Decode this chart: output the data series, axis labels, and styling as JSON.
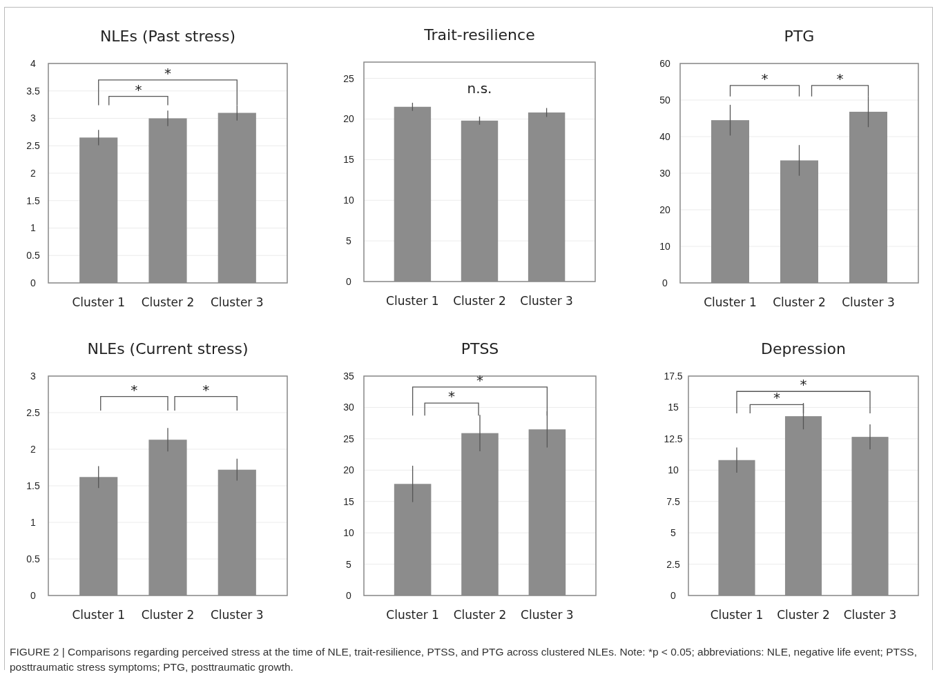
{
  "chart_data": [
    {
      "type": "bar",
      "title": "NLEs (Past stress)",
      "categories": [
        "Cluster 1",
        "Cluster 2",
        "Cluster 3"
      ],
      "values": [
        2.65,
        3.0,
        3.1
      ],
      "errors": [
        0.14,
        0.14,
        0.14
      ],
      "color": "#8c8c8c",
      "ylim": [
        0,
        4
      ],
      "yticks": [
        0,
        0.5,
        1,
        1.5,
        2,
        2.5,
        3,
        3.5,
        4
      ],
      "grid": "y",
      "annotations": [
        "*",
        "*"
      ]
    },
    {
      "type": "bar",
      "title": "Trait-resilience",
      "categories": [
        "Cluster 1",
        "Cluster 2",
        "Cluster 3"
      ],
      "values": [
        21.5,
        19.8,
        20.8
      ],
      "errors": [
        0.5,
        0.5,
        0.55
      ],
      "color": "#8c8c8c",
      "ylim": [
        0,
        27
      ],
      "yticks": [
        0,
        5,
        10,
        15,
        20,
        25
      ],
      "grid": "y",
      "annotations": [
        "n.s."
      ]
    },
    {
      "type": "bar",
      "title": "PTG",
      "categories": [
        "Cluster 1",
        "Cluster 2",
        "Cluster 3"
      ],
      "values": [
        44.5,
        33.5,
        46.8
      ],
      "errors": [
        4.2,
        4.2,
        4.2
      ],
      "color": "#8c8c8c",
      "ylim": [
        0,
        60
      ],
      "yticks": [
        0,
        10,
        20,
        30,
        40,
        50,
        60
      ],
      "grid": "y",
      "annotations": [
        "*",
        "*"
      ]
    },
    {
      "type": "bar",
      "title": "NLEs (Current stress)",
      "categories": [
        "Cluster 1",
        "Cluster 2",
        "Cluster 3"
      ],
      "values": [
        1.62,
        2.13,
        1.72
      ],
      "errors": [
        0.15,
        0.16,
        0.15
      ],
      "color": "#8c8c8c",
      "ylim": [
        0,
        3
      ],
      "yticks": [
        0,
        0.5,
        1,
        1.5,
        2,
        2.5,
        3
      ],
      "grid": "y",
      "annotations": [
        "*",
        "*"
      ]
    },
    {
      "type": "bar",
      "title": "PTSS",
      "categories": [
        "Cluster 1",
        "Cluster 2",
        "Cluster 3"
      ],
      "values": [
        17.8,
        25.9,
        26.5
      ],
      "errors": [
        2.9,
        2.9,
        2.9
      ],
      "color": "#8c8c8c",
      "ylim": [
        0,
        35
      ],
      "yticks": [
        0,
        5,
        10,
        15,
        20,
        25,
        30,
        35
      ],
      "grid": "y",
      "annotations": [
        "*",
        "*"
      ]
    },
    {
      "type": "bar",
      "title": "Depression",
      "categories": [
        "Cluster 1",
        "Cluster 2",
        "Cluster 3"
      ],
      "values": [
        10.8,
        14.3,
        12.65
      ],
      "errors": [
        1.0,
        1.05,
        1.0
      ],
      "color": "#8c8c8c",
      "ylim": [
        0,
        17.5
      ],
      "yticks": [
        0,
        2.5,
        5,
        7.5,
        10,
        12.5,
        15,
        17.5
      ],
      "grid": "y",
      "annotations": [
        "*",
        "*",
        "FIGURE 2 | Comparisons regarding perceived stress at the time of NLE, trait-resilience, PTSS, and PTG across clustered NLEs. Note: *p < 0.05; abbreviations: NLE, negative life event; PTSS, posttraumatic stress symptoms; PTG, posttraumatic growth."
      ]
    }
  ]
}
